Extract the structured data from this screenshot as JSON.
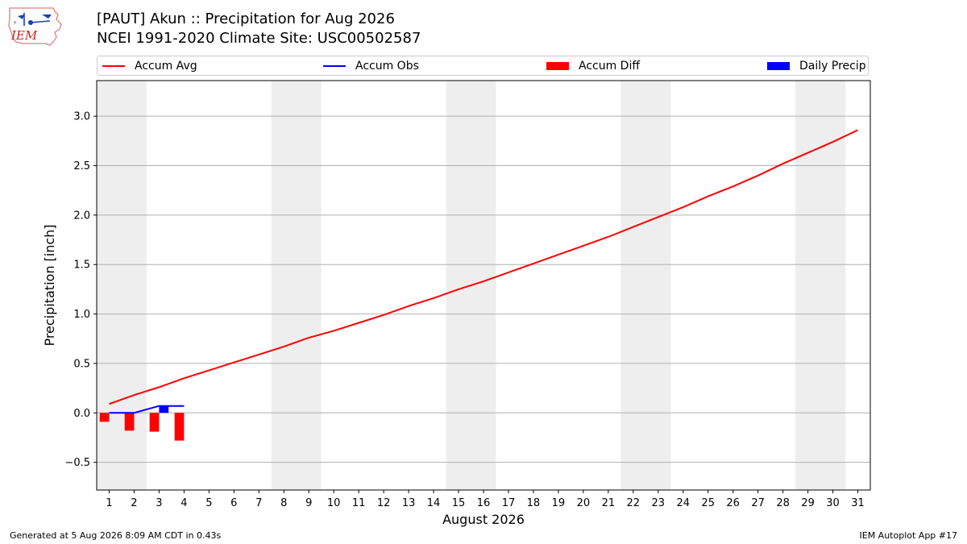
{
  "header": {
    "title_line1": "[PAUT] Akun :: Precipitation for Aug 2026",
    "title_line2": "NCEI 1991-2020 Climate Site: USC00502587"
  },
  "logo": {
    "icon": "iem-logo-icon",
    "text": "IEM"
  },
  "legend": {
    "items": [
      {
        "label": "Accum Avg",
        "kind": "line",
        "color": "#ff0000"
      },
      {
        "label": "Accum Obs",
        "kind": "line",
        "color": "#0000ff"
      },
      {
        "label": "Accum Diff",
        "kind": "patch",
        "color": "#ff0000"
      },
      {
        "label": "Daily Precip",
        "kind": "patch",
        "color": "#0000ff"
      }
    ]
  },
  "footer": {
    "left": "Generated at 5 Aug 2026 8:09 AM CDT in 0.43s",
    "right": "IEM Autoplot App #17"
  },
  "chart_data": {
    "type": "line",
    "title": "[PAUT] Akun :: Precipitation for Aug 2026",
    "subtitle": "NCEI 1991-2020 Climate Site: USC00502587",
    "xlabel": "August 2026",
    "ylabel": "Precipitation [inch]",
    "xlim": [
      0.5,
      31.5
    ],
    "ylim": [
      -0.78,
      3.36
    ],
    "yticks": [
      -0.5,
      0.0,
      0.5,
      1.0,
      1.5,
      2.0,
      2.5,
      3.0
    ],
    "ytick_labels": [
      "−0.5",
      "0.0",
      "0.5",
      "1.0",
      "1.5",
      "2.0",
      "2.5",
      "3.0"
    ],
    "x": [
      1,
      2,
      3,
      4,
      5,
      6,
      7,
      8,
      9,
      10,
      11,
      12,
      13,
      14,
      15,
      16,
      17,
      18,
      19,
      20,
      21,
      22,
      23,
      24,
      25,
      26,
      27,
      28,
      29,
      30,
      31
    ],
    "grid": "horizontal",
    "weekend_shading": [
      [
        0.5,
        2.5
      ],
      [
        7.5,
        9.5
      ],
      [
        14.5,
        16.5
      ],
      [
        21.5,
        23.5
      ],
      [
        28.5,
        30.5
      ]
    ],
    "series": [
      {
        "name": "Accum Avg",
        "type": "line",
        "color": "#ff0000",
        "x": [
          1,
          2,
          3,
          4,
          5,
          6,
          7,
          8,
          9,
          10,
          11,
          12,
          13,
          14,
          15,
          16,
          17,
          18,
          19,
          20,
          21,
          22,
          23,
          24,
          25,
          26,
          27,
          28,
          29,
          30,
          31
        ],
        "values": [
          0.09,
          0.18,
          0.26,
          0.35,
          0.43,
          0.51,
          0.59,
          0.67,
          0.76,
          0.83,
          0.91,
          0.99,
          1.08,
          1.16,
          1.25,
          1.33,
          1.42,
          1.51,
          1.6,
          1.69,
          1.78,
          1.88,
          1.98,
          2.08,
          2.19,
          2.29,
          2.4,
          2.52,
          2.63,
          2.74,
          2.86
        ]
      },
      {
        "name": "Accum Obs",
        "type": "line",
        "color": "#0000ff",
        "x": [
          1,
          2,
          3,
          4
        ],
        "values": [
          0.0,
          0.0,
          0.07,
          0.07
        ]
      },
      {
        "name": "Accum Diff",
        "type": "bar",
        "color": "#ff0000",
        "x": [
          1,
          2,
          3,
          4
        ],
        "values": [
          -0.09,
          -0.18,
          -0.19,
          -0.28
        ]
      },
      {
        "name": "Daily Precip",
        "type": "bar",
        "color": "#0000ff",
        "x": [
          1,
          2,
          3,
          4
        ],
        "values": [
          0.0,
          0.0,
          0.07,
          0.0
        ]
      }
    ],
    "legend_position": "top"
  }
}
